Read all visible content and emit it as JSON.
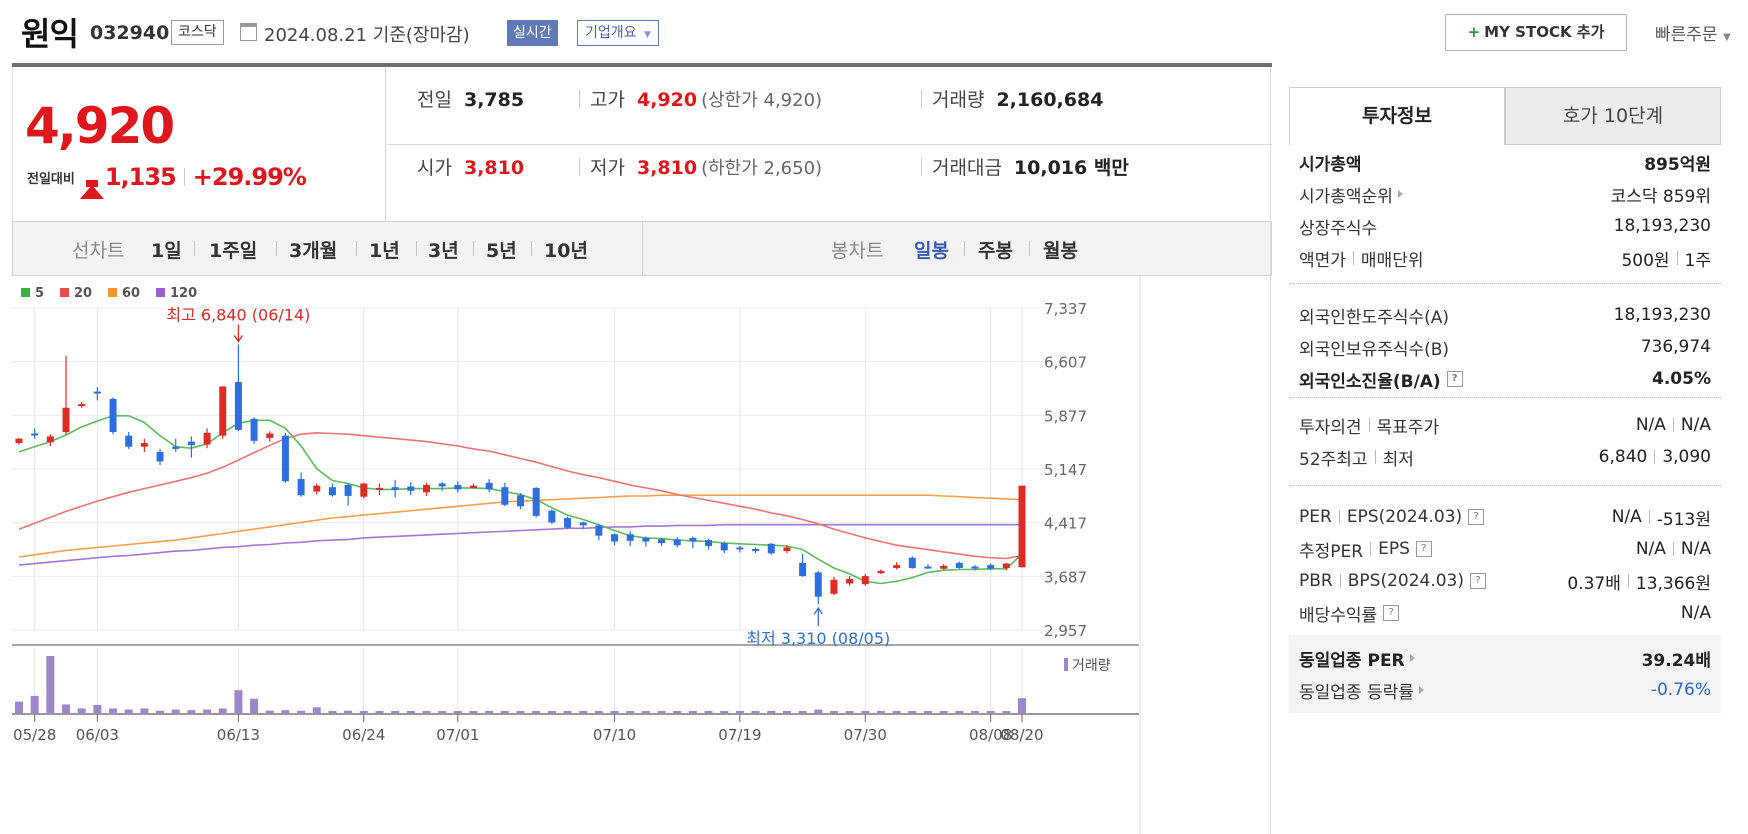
{
  "header": {
    "name": "원익",
    "code": "032940",
    "market": "코스닥",
    "date": "2024.08.21 기준(장마감)",
    "realtime": "실시간",
    "company_overview": "기업개요",
    "my_stock": "MY STOCK 추가",
    "quick_order": "빠른주문"
  },
  "price": {
    "current": "4,920",
    "change_label": "전일대비",
    "change": "1,135",
    "change_pct": "+29.99%"
  },
  "stats": {
    "prev_label": "전일",
    "prev": "3,785",
    "high_label": "고가",
    "high": "4,920",
    "upper_limit": "(상한가 4,920)",
    "volume_label": "거래량",
    "volume": "2,160,684",
    "open_label": "시가",
    "open": "3,810",
    "low_label": "저가",
    "low": "3,810",
    "lower_limit": "(하한가 2,650)",
    "amount_label": "거래대금",
    "amount": "10,016 백만"
  },
  "period_bar": {
    "line_label": "선차트",
    "periods": [
      "1일",
      "1주일",
      "3개월",
      "1년",
      "3년",
      "5년",
      "10년"
    ],
    "candle_label": "봉차트",
    "candles": [
      "일봉",
      "주봉",
      "월봉"
    ],
    "candle_selected": "일봉"
  },
  "chart_data": {
    "type": "candlestick",
    "ma_legend": [
      {
        "name": "5",
        "color": "#3cae3c"
      },
      {
        "name": "20",
        "color": "#e84c4c"
      },
      {
        "name": "60",
        "color": "#f5952f"
      },
      {
        "name": "120",
        "color": "#9b5fd0"
      }
    ],
    "y_ticks": [
      "7,337",
      "6,607",
      "5,877",
      "5,147",
      "4,417",
      "3,687",
      "2,957"
    ],
    "ylim": [
      2957,
      7337
    ],
    "x_ticks": [
      "05/28",
      "06/03",
      "06/13",
      "06/24",
      "07/01",
      "07/10",
      "07/19",
      "07/30",
      "08/08",
      "08/20"
    ],
    "max_annotation": "최고 6,840 (06/14)",
    "min_annotation": "최저 3,310 (08/05)",
    "volume_label": "거래량",
    "candles_ohlc": [
      [
        5500,
        5560,
        5480,
        5570
      ],
      [
        5630,
        5610,
        5560,
        5700
      ],
      [
        5510,
        5590,
        5460,
        5620
      ],
      [
        5650,
        5980,
        5620,
        6690
      ],
      [
        6020,
        6030,
        5980,
        6060
      ],
      [
        6200,
        6180,
        6080,
        6260
      ],
      [
        6100,
        5650,
        5620,
        6120
      ],
      [
        5600,
        5450,
        5420,
        5650
      ],
      [
        5450,
        5500,
        5380,
        5560
      ],
      [
        5380,
        5250,
        5200,
        5420
      ],
      [
        5450,
        5420,
        5380,
        5560
      ],
      [
        5520,
        5470,
        5300,
        5590
      ],
      [
        5480,
        5640,
        5430,
        5700
      ],
      [
        5600,
        6270,
        5560,
        6270
      ],
      [
        6330,
        5680,
        5660,
        6840
      ],
      [
        5830,
        5530,
        5490,
        5850
      ],
      [
        5570,
        5630,
        5520,
        5660
      ],
      [
        5600,
        4980,
        4960,
        5640
      ],
      [
        5010,
        4790,
        4770,
        5100
      ],
      [
        4840,
        4920,
        4800,
        4950
      ],
      [
        4900,
        4790,
        4770,
        4950
      ],
      [
        4930,
        4780,
        4650,
        4950
      ],
      [
        4770,
        4950,
        4750,
        4960
      ],
      [
        4870,
        4890,
        4790,
        4950
      ],
      [
        4900,
        4860,
        4760,
        5000
      ],
      [
        4910,
        4850,
        4790,
        4970
      ],
      [
        4830,
        4930,
        4780,
        4960
      ],
      [
        4950,
        4910,
        4850,
        4970
      ],
      [
        4930,
        4870,
        4830,
        4980
      ],
      [
        4890,
        4920,
        4880,
        4950
      ],
      [
        4960,
        4870,
        4830,
        5010
      ],
      [
        4900,
        4660,
        4640,
        4960
      ],
      [
        4790,
        4640,
        4600,
        4820
      ],
      [
        4890,
        4510,
        4490,
        4900
      ],
      [
        4580,
        4420,
        4400,
        4600
      ],
      [
        4480,
        4350,
        4330,
        4500
      ],
      [
        4420,
        4380,
        4330,
        4430
      ],
      [
        4380,
        4240,
        4180,
        4400
      ],
      [
        4260,
        4160,
        4110,
        4270
      ],
      [
        4260,
        4170,
        4100,
        4300
      ],
      [
        4210,
        4160,
        4090,
        4230
      ],
      [
        4190,
        4140,
        4100,
        4210
      ],
      [
        4190,
        4110,
        4080,
        4220
      ],
      [
        4210,
        4160,
        4070,
        4230
      ],
      [
        4180,
        4100,
        4050,
        4200
      ],
      [
        4140,
        4040,
        4000,
        4160
      ],
      [
        4080,
        4060,
        4010,
        4100
      ],
      [
        4060,
        4030,
        4000,
        4080
      ],
      [
        4130,
        4000,
        3980,
        4140
      ],
      [
        4030,
        4080,
        4000,
        4110
      ],
      [
        3870,
        3690,
        3680,
        3990
      ],
      [
        3740,
        3410,
        3310,
        3760
      ],
      [
        3450,
        3640,
        3430,
        3680
      ],
      [
        3590,
        3650,
        3560,
        3690
      ],
      [
        3580,
        3690,
        3560,
        3720
      ],
      [
        3730,
        3760,
        3720,
        3780
      ],
      [
        3800,
        3840,
        3780,
        3880
      ],
      [
        3940,
        3800,
        3790,
        3960
      ],
      [
        3820,
        3800,
        3790,
        3850
      ],
      [
        3790,
        3830,
        3780,
        3850
      ],
      [
        3870,
        3800,
        3790,
        3890
      ],
      [
        3820,
        3810,
        3770,
        3840
      ],
      [
        3840,
        3790,
        3770,
        3860
      ],
      [
        3800,
        3860,
        3770,
        3870
      ],
      [
        3810,
        4920,
        3810,
        4920
      ]
    ],
    "ma5": [
      5380,
      5450,
      5520,
      5610,
      5720,
      5800,
      5870,
      5870,
      5780,
      5600,
      5450,
      5430,
      5490,
      5640,
      5770,
      5810,
      5810,
      5700,
      5460,
      5150,
      4990,
      4950,
      4890,
      4870,
      4870,
      4880,
      4880,
      4880,
      4890,
      4890,
      4880,
      4840,
      4800,
      4730,
      4620,
      4520,
      4460,
      4390,
      4310,
      4240,
      4210,
      4200,
      4180,
      4170,
      4160,
      4140,
      4130,
      4120,
      4110,
      4100,
      4050,
      3920,
      3800,
      3720,
      3620,
      3590,
      3620,
      3670,
      3740,
      3770,
      3780,
      3780,
      3790,
      3790,
      3990
    ],
    "ma20": [
      4330,
      4410,
      4490,
      4570,
      4640,
      4710,
      4770,
      4830,
      4880,
      4930,
      4980,
      5030,
      5090,
      5170,
      5270,
      5370,
      5470,
      5560,
      5620,
      5640,
      5630,
      5620,
      5600,
      5580,
      5560,
      5540,
      5520,
      5490,
      5460,
      5420,
      5390,
      5340,
      5290,
      5240,
      5180,
      5120,
      5070,
      5030,
      4980,
      4930,
      4890,
      4850,
      4800,
      4760,
      4720,
      4680,
      4640,
      4600,
      4550,
      4510,
      4460,
      4400,
      4330,
      4270,
      4210,
      4160,
      4110,
      4080,
      4050,
      4020,
      3990,
      3960,
      3940,
      3930,
      3970
    ],
    "ma60": [
      3950,
      3980,
      4010,
      4040,
      4060,
      4080,
      4100,
      4120,
      4140,
      4160,
      4180,
      4210,
      4240,
      4270,
      4300,
      4330,
      4360,
      4390,
      4420,
      4450,
      4480,
      4500,
      4520,
      4540,
      4560,
      4580,
      4600,
      4620,
      4640,
      4660,
      4680,
      4700,
      4710,
      4720,
      4730,
      4740,
      4750,
      4760,
      4770,
      4780,
      4780,
      4790,
      4790,
      4790,
      4790,
      4790,
      4790,
      4790,
      4790,
      4790,
      4790,
      4790,
      4790,
      4790,
      4790,
      4790,
      4790,
      4790,
      4790,
      4780,
      4770,
      4760,
      4750,
      4740,
      4730
    ],
    "ma120": [
      3840,
      3860,
      3880,
      3900,
      3920,
      3940,
      3960,
      3970,
      3990,
      4010,
      4030,
      4040,
      4060,
      4080,
      4090,
      4110,
      4120,
      4140,
      4150,
      4170,
      4180,
      4190,
      4210,
      4220,
      4230,
      4240,
      4250,
      4260,
      4270,
      4280,
      4290,
      4300,
      4310,
      4320,
      4330,
      4340,
      4340,
      4350,
      4360,
      4360,
      4370,
      4370,
      4380,
      4380,
      4380,
      4390,
      4390,
      4390,
      4390,
      4390,
      4390,
      4390,
      4390,
      4390,
      4390,
      4390,
      4390,
      4390,
      4390,
      4390,
      4390,
      4390,
      4390,
      4390,
      4390
    ],
    "volume": [
      20,
      30,
      100,
      15,
      8,
      14,
      8,
      6,
      8,
      4,
      6,
      5,
      6,
      8,
      40,
      25,
      4,
      5,
      4,
      10,
      3,
      4,
      3,
      3,
      3,
      3,
      3,
      3,
      3,
      3,
      3,
      3,
      3,
      3,
      3,
      3,
      3,
      3,
      3,
      3,
      3,
      3,
      3,
      3,
      3,
      3,
      3,
      3,
      3,
      3,
      3,
      6,
      3,
      3,
      3,
      3,
      3,
      3,
      3,
      3,
      3,
      3,
      3,
      3,
      26
    ]
  },
  "right_panel": {
    "tabs": [
      "투자정보",
      "호가 10단계"
    ],
    "market_cap_label": "시가총액",
    "market_cap": "895억원",
    "market_cap_rank_label": "시가총액순위",
    "market_cap_rank": "코스닥 859위",
    "shares_label": "상장주식수",
    "shares": "18,193,230",
    "face_label": "액면가",
    "unit_label": "매매단위",
    "face": "500원",
    "unit": "1주",
    "foreign_limit_label": "외국인한도주식수(A)",
    "foreign_limit": "18,193,230",
    "foreign_hold_label": "외국인보유주식수(B)",
    "foreign_hold": "736,974",
    "foreign_ratio_label": "외국인소진율(B/A)",
    "foreign_ratio": "4.05%",
    "opinion_label": "투자의견",
    "target_label": "목표주가",
    "opinion": "N/A",
    "target": "N/A",
    "w52_high_label": "52주최고",
    "w52_low_label": "최저",
    "w52_high": "6,840",
    "w52_low": "3,090",
    "per_label": "PER",
    "eps_label": "EPS(2024.03)",
    "per": "N/A",
    "eps": "-513원",
    "est_per_label": "추정PER",
    "est_eps_label": "EPS",
    "est_per": "N/A",
    "est_eps": "N/A",
    "pbr_label": "PBR",
    "bps_label": "BPS(2024.03)",
    "pbr": "0.37배",
    "bps": "13,366원",
    "div_label": "배당수익률",
    "div": "N/A",
    "ind_per_label": "동일업종 PER",
    "ind_per": "39.24배",
    "ind_chg_label": "동일업종 등락률",
    "ind_chg": "-0.76%"
  }
}
